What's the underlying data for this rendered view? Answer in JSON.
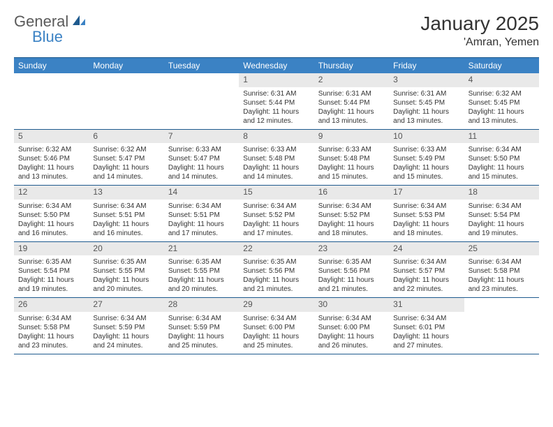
{
  "brand": {
    "part1": "General",
    "part2": "Blue"
  },
  "title": "January 2025",
  "location": "'Amran, Yemen",
  "colors": {
    "header_bg": "#3b82c4",
    "header_border": "#1e5a8e",
    "daynum_bg": "#e9e9e9",
    "text": "#333333",
    "logo_gray": "#5a5a5a",
    "logo_blue": "#3b82c4",
    "background": "#ffffff"
  },
  "fonts": {
    "title_size": 28,
    "location_size": 16,
    "dayheader_size": 12,
    "cell_size": 10
  },
  "day_names": [
    "Sunday",
    "Monday",
    "Tuesday",
    "Wednesday",
    "Thursday",
    "Friday",
    "Saturday"
  ],
  "weeks": [
    [
      {
        "day": "",
        "lines": []
      },
      {
        "day": "",
        "lines": []
      },
      {
        "day": "",
        "lines": []
      },
      {
        "day": "1",
        "lines": [
          "Sunrise: 6:31 AM",
          "Sunset: 5:44 PM",
          "Daylight: 11 hours and 12 minutes."
        ]
      },
      {
        "day": "2",
        "lines": [
          "Sunrise: 6:31 AM",
          "Sunset: 5:44 PM",
          "Daylight: 11 hours and 13 minutes."
        ]
      },
      {
        "day": "3",
        "lines": [
          "Sunrise: 6:31 AM",
          "Sunset: 5:45 PM",
          "Daylight: 11 hours and 13 minutes."
        ]
      },
      {
        "day": "4",
        "lines": [
          "Sunrise: 6:32 AM",
          "Sunset: 5:45 PM",
          "Daylight: 11 hours and 13 minutes."
        ]
      }
    ],
    [
      {
        "day": "5",
        "lines": [
          "Sunrise: 6:32 AM",
          "Sunset: 5:46 PM",
          "Daylight: 11 hours and 13 minutes."
        ]
      },
      {
        "day": "6",
        "lines": [
          "Sunrise: 6:32 AM",
          "Sunset: 5:47 PM",
          "Daylight: 11 hours and 14 minutes."
        ]
      },
      {
        "day": "7",
        "lines": [
          "Sunrise: 6:33 AM",
          "Sunset: 5:47 PM",
          "Daylight: 11 hours and 14 minutes."
        ]
      },
      {
        "day": "8",
        "lines": [
          "Sunrise: 6:33 AM",
          "Sunset: 5:48 PM",
          "Daylight: 11 hours and 14 minutes."
        ]
      },
      {
        "day": "9",
        "lines": [
          "Sunrise: 6:33 AM",
          "Sunset: 5:48 PM",
          "Daylight: 11 hours and 15 minutes."
        ]
      },
      {
        "day": "10",
        "lines": [
          "Sunrise: 6:33 AM",
          "Sunset: 5:49 PM",
          "Daylight: 11 hours and 15 minutes."
        ]
      },
      {
        "day": "11",
        "lines": [
          "Sunrise: 6:34 AM",
          "Sunset: 5:50 PM",
          "Daylight: 11 hours and 15 minutes."
        ]
      }
    ],
    [
      {
        "day": "12",
        "lines": [
          "Sunrise: 6:34 AM",
          "Sunset: 5:50 PM",
          "Daylight: 11 hours and 16 minutes."
        ]
      },
      {
        "day": "13",
        "lines": [
          "Sunrise: 6:34 AM",
          "Sunset: 5:51 PM",
          "Daylight: 11 hours and 16 minutes."
        ]
      },
      {
        "day": "14",
        "lines": [
          "Sunrise: 6:34 AM",
          "Sunset: 5:51 PM",
          "Daylight: 11 hours and 17 minutes."
        ]
      },
      {
        "day": "15",
        "lines": [
          "Sunrise: 6:34 AM",
          "Sunset: 5:52 PM",
          "Daylight: 11 hours and 17 minutes."
        ]
      },
      {
        "day": "16",
        "lines": [
          "Sunrise: 6:34 AM",
          "Sunset: 5:52 PM",
          "Daylight: 11 hours and 18 minutes."
        ]
      },
      {
        "day": "17",
        "lines": [
          "Sunrise: 6:34 AM",
          "Sunset: 5:53 PM",
          "Daylight: 11 hours and 18 minutes."
        ]
      },
      {
        "day": "18",
        "lines": [
          "Sunrise: 6:34 AM",
          "Sunset: 5:54 PM",
          "Daylight: 11 hours and 19 minutes."
        ]
      }
    ],
    [
      {
        "day": "19",
        "lines": [
          "Sunrise: 6:35 AM",
          "Sunset: 5:54 PM",
          "Daylight: 11 hours and 19 minutes."
        ]
      },
      {
        "day": "20",
        "lines": [
          "Sunrise: 6:35 AM",
          "Sunset: 5:55 PM",
          "Daylight: 11 hours and 20 minutes."
        ]
      },
      {
        "day": "21",
        "lines": [
          "Sunrise: 6:35 AM",
          "Sunset: 5:55 PM",
          "Daylight: 11 hours and 20 minutes."
        ]
      },
      {
        "day": "22",
        "lines": [
          "Sunrise: 6:35 AM",
          "Sunset: 5:56 PM",
          "Daylight: 11 hours and 21 minutes."
        ]
      },
      {
        "day": "23",
        "lines": [
          "Sunrise: 6:35 AM",
          "Sunset: 5:56 PM",
          "Daylight: 11 hours and 21 minutes."
        ]
      },
      {
        "day": "24",
        "lines": [
          "Sunrise: 6:34 AM",
          "Sunset: 5:57 PM",
          "Daylight: 11 hours and 22 minutes."
        ]
      },
      {
        "day": "25",
        "lines": [
          "Sunrise: 6:34 AM",
          "Sunset: 5:58 PM",
          "Daylight: 11 hours and 23 minutes."
        ]
      }
    ],
    [
      {
        "day": "26",
        "lines": [
          "Sunrise: 6:34 AM",
          "Sunset: 5:58 PM",
          "Daylight: 11 hours and 23 minutes."
        ]
      },
      {
        "day": "27",
        "lines": [
          "Sunrise: 6:34 AM",
          "Sunset: 5:59 PM",
          "Daylight: 11 hours and 24 minutes."
        ]
      },
      {
        "day": "28",
        "lines": [
          "Sunrise: 6:34 AM",
          "Sunset: 5:59 PM",
          "Daylight: 11 hours and 25 minutes."
        ]
      },
      {
        "day": "29",
        "lines": [
          "Sunrise: 6:34 AM",
          "Sunset: 6:00 PM",
          "Daylight: 11 hours and 25 minutes."
        ]
      },
      {
        "day": "30",
        "lines": [
          "Sunrise: 6:34 AM",
          "Sunset: 6:00 PM",
          "Daylight: 11 hours and 26 minutes."
        ]
      },
      {
        "day": "31",
        "lines": [
          "Sunrise: 6:34 AM",
          "Sunset: 6:01 PM",
          "Daylight: 11 hours and 27 minutes."
        ]
      },
      {
        "day": "",
        "lines": []
      }
    ]
  ]
}
